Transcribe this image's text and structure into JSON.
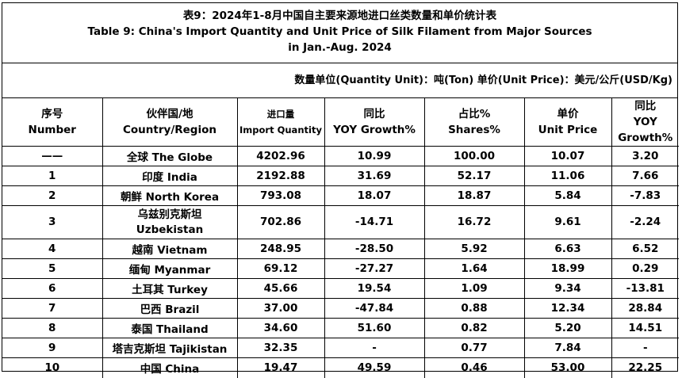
{
  "title": {
    "cn": "表9：2024年1-8月中国自主要来源地进口丝类数量和单价统计表",
    "en_line1": "Table 9: China's Import Quantity and Unit Price of Silk Filament from Major Sources",
    "en_line2": "in Jan.-Aug. 2024"
  },
  "units": "数量单位(Quantity Unit)：吨(Ton)  单价(Unit Price)：美元/公斤(USD/Kg)",
  "headers": [
    {
      "cn": "序号",
      "en": "Number"
    },
    {
      "cn": "伙伴国/地",
      "en": "Country/Region"
    },
    {
      "cn": "进口量",
      "en": "Import Quantity"
    },
    {
      "cn": "同比",
      "en": "YOY Growth%"
    },
    {
      "cn": "占比%",
      "en": "Shares%"
    },
    {
      "cn": "单价",
      "en": "Unit Price"
    },
    {
      "cn": "同比",
      "en": "YOY Growth%"
    }
  ],
  "rows": [
    {
      "no": "——",
      "country": "全球 The Globe",
      "qty": "4202.96",
      "qty_yoy": "10.99",
      "share": "100.00",
      "price": "10.07",
      "price_yoy": "3.20"
    },
    {
      "no": "1",
      "country": "印度 India",
      "qty": "2192.88",
      "qty_yoy": "31.69",
      "share": "52.17",
      "price": "11.06",
      "price_yoy": "7.66"
    },
    {
      "no": "2",
      "country": "朝鲜  North Korea",
      "qty": "793.08",
      "qty_yoy": "18.07",
      "share": "18.87",
      "price": "5.84",
      "price_yoy": "-7.83"
    },
    {
      "no": "3",
      "country_cn": "乌兹别克斯坦",
      "country_en": "Uzbekistan",
      "qty": "702.86",
      "qty_yoy": "-14.71",
      "share": "16.72",
      "price": "9.61",
      "price_yoy": "-2.24"
    },
    {
      "no": "4",
      "country": "越南 Vietnam",
      "qty": "248.95",
      "qty_yoy": "-28.50",
      "share": "5.92",
      "price": "6.63",
      "price_yoy": "6.52"
    },
    {
      "no": "5",
      "country": "缅甸 Myanmar",
      "qty": "69.12",
      "qty_yoy": "-27.27",
      "share": "1.64",
      "price": "18.99",
      "price_yoy": "0.29"
    },
    {
      "no": "6",
      "country": "土耳其 Turkey",
      "qty": "45.66",
      "qty_yoy": "19.54",
      "share": "1.09",
      "price": "9.34",
      "price_yoy": "-13.81"
    },
    {
      "no": "7",
      "country": "巴西 Brazil",
      "qty": "37.00",
      "qty_yoy": "-47.84",
      "share": "0.88",
      "price": "12.34",
      "price_yoy": "28.84"
    },
    {
      "no": "8",
      "country": "泰国 Thailand",
      "qty": "34.60",
      "qty_yoy": "51.60",
      "share": "0.82",
      "price": "5.20",
      "price_yoy": "14.51"
    },
    {
      "no": "9",
      "country": "塔吉克斯坦 Tajikistan",
      "qty": "32.35",
      "qty_yoy": "-",
      "share": "0.77",
      "price": "7.84",
      "price_yoy": "-"
    },
    {
      "no": "10",
      "country": "中国 China",
      "qty": "19.47",
      "qty_yoy": "49.59",
      "share": "0.46",
      "price": "53.00",
      "price_yoy": "22.25"
    }
  ]
}
